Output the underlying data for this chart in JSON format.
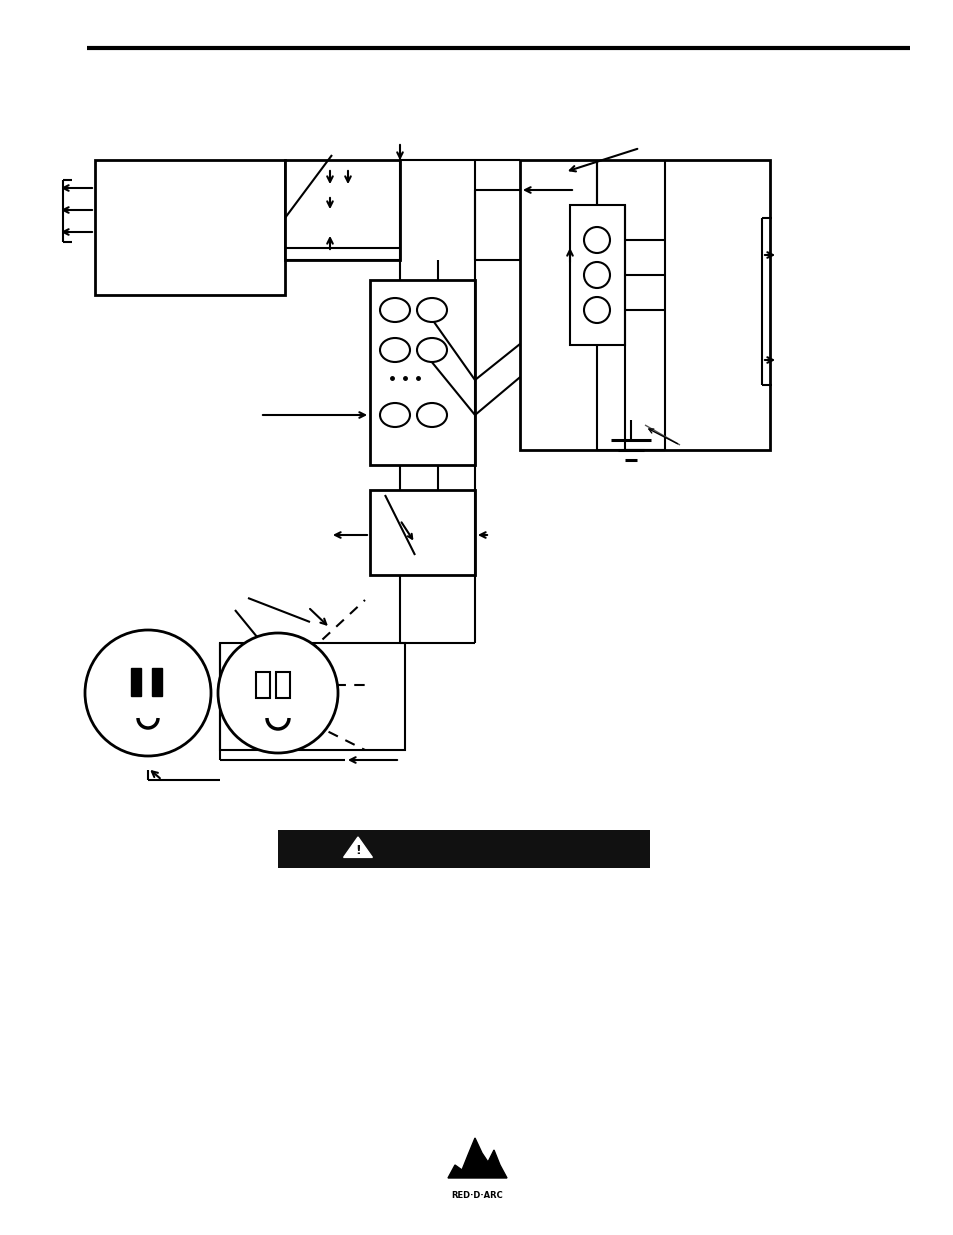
{
  "bg_color": "#ffffff",
  "line_color": "#000000",
  "warning_bar_color": "#111111",
  "fig_width": 9.54,
  "fig_height": 12.35,
  "dpi": 100
}
